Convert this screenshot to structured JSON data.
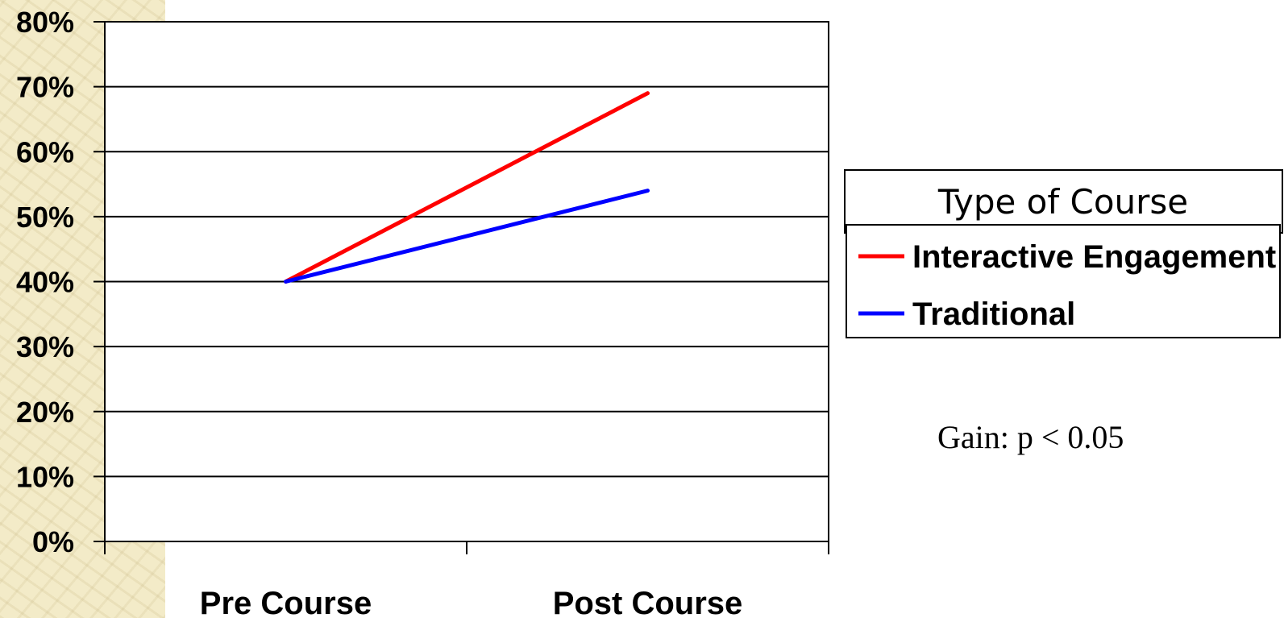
{
  "chart_data": {
    "type": "line",
    "categories": [
      "Pre Course",
      "Post Course"
    ],
    "ylim": [
      0,
      80
    ],
    "yticks": [
      "0%",
      "10%",
      "20%",
      "30%",
      "40%",
      "50%",
      "60%",
      "70%",
      "80%"
    ],
    "grid": true,
    "series": [
      {
        "name": "Interactive Engagement",
        "values": [
          40,
          69
        ],
        "color": "#ff0000"
      },
      {
        "name": "Traditional",
        "values": [
          40,
          54
        ],
        "color": "#0000ff"
      }
    ],
    "legend": {
      "title": "Type of Course",
      "placement": "right"
    },
    "annotation": "Gain: p < 0.05"
  }
}
